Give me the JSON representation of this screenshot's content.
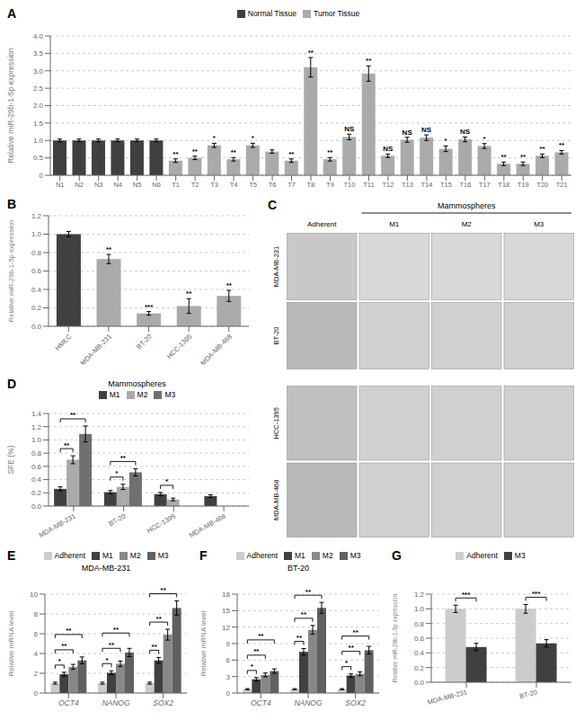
{
  "chart_data": [
    {
      "type": "bar",
      "categories": [
        "N1",
        "N2",
        "N3",
        "N4",
        "N5",
        "N6",
        "T1",
        "T2",
        "T3",
        "T4",
        "T5",
        "T6",
        "T7",
        "T8",
        "T9",
        "T10",
        "T11",
        "T12",
        "T13",
        "T14",
        "T15",
        "T16",
        "T17",
        "T18",
        "T19",
        "T20",
        "T21"
      ],
      "series": [
        {
          "name": "Normal Tissue",
          "color": "#404040",
          "values": [
            1.0,
            1.0,
            1.0,
            1.0,
            1.0,
            1.0,
            null,
            null,
            null,
            null,
            null,
            null,
            null,
            null,
            null,
            null,
            null,
            null,
            null,
            null,
            null,
            null,
            null,
            null,
            null,
            null,
            null
          ],
          "errors": [
            0.04,
            0.04,
            0.04,
            0.04,
            0.04,
            0.04,
            null,
            null,
            null,
            null,
            null,
            null,
            null,
            null,
            null,
            null,
            null,
            null,
            null,
            null,
            null,
            null,
            null,
            null,
            null,
            null,
            null
          ]
        },
        {
          "name": "Tumor Tissue",
          "color": "#aaaaaa",
          "values": [
            null,
            null,
            null,
            null,
            null,
            null,
            0.42,
            0.5,
            0.86,
            0.46,
            0.86,
            0.68,
            0.42,
            3.1,
            0.46,
            1.1,
            2.92,
            0.56,
            1.02,
            1.08,
            0.76,
            1.03,
            0.84,
            0.33,
            0.33,
            0.56,
            0.66
          ],
          "errors": [
            null,
            null,
            null,
            null,
            null,
            null,
            0.05,
            0.05,
            0.06,
            0.05,
            0.06,
            0.05,
            0.05,
            0.28,
            0.05,
            0.08,
            0.22,
            0.05,
            0.07,
            0.08,
            0.08,
            0.07,
            0.07,
            0.05,
            0.05,
            0.05,
            0.05
          ]
        }
      ],
      "ylabel": "Relative miR-29b-1-5p expression",
      "ylim": [
        0,
        4.0
      ],
      "yticks": [
        0,
        0.5,
        {
          "value": 1.0,
          "label": "1.0"
        },
        1.5,
        {
          "value": 2.0,
          "label": "2.0"
        },
        2.5,
        {
          "value": 3.0,
          "label": "3.0"
        },
        3.5,
        {
          "value": 4.0,
          "label": "4.0"
        }
      ],
      "grid": true,
      "legend": "top",
      "annotations": [
        {
          "text": "A"
        },
        {
          "text": "**",
          "category": "T1"
        },
        {
          "text": "**",
          "category": "T2"
        },
        {
          "text": "*",
          "category": "T3"
        },
        {
          "text": "**",
          "category": "T4"
        },
        {
          "text": "*",
          "category": "T5"
        },
        {
          "text": "**",
          "category": "T7"
        },
        {
          "text": "**",
          "category": "T8"
        },
        {
          "text": "**",
          "category": "T9"
        },
        {
          "text": "NS",
          "category": "T10"
        },
        {
          "text": "**",
          "category": "T11"
        },
        {
          "text": "NS",
          "category": "T12"
        },
        {
          "text": "NS",
          "category": "T13"
        },
        {
          "text": "NS",
          "category": "T14"
        },
        {
          "text": "*",
          "category": "T15"
        },
        {
          "text": "NS",
          "category": "T16"
        },
        {
          "text": "*",
          "category": "T17"
        },
        {
          "text": "**",
          "category": "T18"
        },
        {
          "text": "**",
          "category": "T19"
        },
        {
          "text": "**",
          "category": "T20"
        },
        {
          "text": "**",
          "category": "T21"
        }
      ]
    },
    {
      "type": "bar",
      "categories": [
        "HMEC",
        "MDA-MB-231",
        "BT-20",
        "HCC-1395",
        "MDA-MB-468"
      ],
      "values": [
        1.0,
        0.73,
        0.14,
        0.22,
        0.33
      ],
      "errors": [
        0.03,
        0.05,
        0.02,
        0.08,
        0.06
      ],
      "colors": [
        "#404040",
        "#aaaaaa",
        "#aaaaaa",
        "#aaaaaa",
        "#aaaaaa"
      ],
      "ylabel": "Relative miR-29b-1-5p expression",
      "ylim": [
        0,
        1.2
      ],
      "yticks": [
        {
          "value": 0.0,
          "label": "0.0"
        },
        0.2,
        0.4,
        0.6,
        0.8,
        {
          "value": 1.0,
          "label": "1.0"
        },
        1.2
      ],
      "grid": true,
      "annotations": [
        {
          "text": "B"
        },
        {
          "text": "**",
          "category": "MDA-MB-231"
        },
        {
          "text": "***",
          "category": "BT-20"
        },
        {
          "text": "**",
          "category": "HCC-1395"
        },
        {
          "text": "**",
          "category": "MDA-MB-468"
        }
      ]
    },
    {
      "type": "image",
      "categories": [
        "Adherent",
        "M1",
        "M2",
        "M3"
      ],
      "series": [
        {
          "name": "MDA-MB-231",
          "colors": [
            "#c8c8c8",
            "#d8d8d8",
            "#d8d8d8",
            "#d8d8d8"
          ]
        },
        {
          "name": "BT-20",
          "colors": [
            "#b8b8b8",
            "#d0d0d0",
            "#d0d0d0",
            "#d0d0d0"
          ]
        },
        {
          "name": "HCC-1395",
          "colors": [
            "#c0c0c0",
            "#d0d0d0",
            "#d0d0d0",
            "#d0d0d0"
          ]
        },
        {
          "name": "MDA-MB-468",
          "colors": [
            "#b8b8b8",
            "#d0d0d0",
            "#d0d0d0",
            "#d0d0d0"
          ]
        }
      ],
      "annotations": [
        {
          "text": "C"
        },
        {
          "text": "Mammospheres",
          "from": "M1",
          "to": "M3"
        }
      ]
    },
    {
      "type": "bar",
      "title": "Mammospheres",
      "categories": [
        "MDA-MB-231",
        "BT-20",
        "HCC-1395",
        "MDA-MB-468"
      ],
      "series": [
        {
          "name": "M1",
          "color": "#404040",
          "values": [
            0.26,
            0.21,
            0.18,
            0.15
          ],
          "errors": [
            0.03,
            0.025,
            0.025,
            0.02
          ]
        },
        {
          "name": "M2",
          "color": "#aaaaaa",
          "values": [
            0.7,
            0.29,
            0.1,
            0.0
          ],
          "errors": [
            0.06,
            0.04,
            0.02,
            0.0
          ]
        },
        {
          "name": "M3",
          "color": "#707070",
          "values": [
            1.09,
            0.51,
            0.0,
            0.0
          ],
          "errors": [
            0.12,
            0.055,
            0.0,
            0.0
          ]
        }
      ],
      "ylabel": "SFE (%)",
      "ylim": [
        0,
        1.4
      ],
      "yticks": [
        {
          "value": 0.0,
          "label": "0.0"
        },
        0.2,
        0.4,
        0.6,
        0.8,
        {
          "value": 1.0,
          "label": "1.0"
        },
        1.2,
        1.4
      ],
      "grid": true,
      "legend": "top",
      "annotations": [
        {
          "text": "D"
        },
        {
          "text": "**",
          "category": "MDA-MB-231",
          "from": "M1",
          "to": "M2"
        },
        {
          "text": "**",
          "category": "MDA-MB-231",
          "from": "M1",
          "to": "M3"
        },
        {
          "text": "*",
          "category": "BT-20",
          "from": "M1",
          "to": "M2"
        },
        {
          "text": "**",
          "category": "BT-20",
          "from": "M1",
          "to": "M3"
        },
        {
          "text": "*",
          "category": "HCC-1395",
          "from": "M1",
          "to": "M2"
        }
      ]
    },
    {
      "type": "bar",
      "title": "MDA-MB-231",
      "categories": [
        "OCT4",
        "NANOG",
        "SOX2"
      ],
      "series": [
        {
          "name": "Adherent",
          "color": "#cccccc",
          "values": [
            1.0,
            1.0,
            1.0
          ],
          "errors": [
            0.1,
            0.1,
            0.1
          ]
        },
        {
          "name": "M1",
          "color": "#404040",
          "values": [
            1.9,
            2.05,
            3.3
          ],
          "errors": [
            0.2,
            0.2,
            0.3
          ]
        },
        {
          "name": "M2",
          "color": "#888888",
          "values": [
            2.65,
            2.95,
            5.9
          ],
          "errors": [
            0.25,
            0.28,
            0.55
          ]
        },
        {
          "name": "M3",
          "color": "#606060",
          "values": [
            3.3,
            4.1,
            8.6
          ],
          "errors": [
            0.35,
            0.42,
            0.72
          ]
        }
      ],
      "ylabel": "Relative mRNA level",
      "ylim": [
        0,
        10
      ],
      "yticks": [
        0,
        2,
        4,
        6,
        8,
        10
      ],
      "grid": true,
      "legend": "top",
      "annotations": [
        {
          "text": "E"
        },
        {
          "text": "*",
          "category": "OCT4",
          "from": "Adherent",
          "to": "M1"
        },
        {
          "text": "**",
          "category": "OCT4",
          "from": "Adherent",
          "to": "M2"
        },
        {
          "text": "**",
          "category": "OCT4",
          "from": "Adherent",
          "to": "M3"
        },
        {
          "text": "*",
          "category": "NANOG",
          "from": "Adherent",
          "to": "M1"
        },
        {
          "text": "**",
          "category": "NANOG",
          "from": "Adherent",
          "to": "M2"
        },
        {
          "text": "**",
          "category": "NANOG",
          "from": "Adherent",
          "to": "M3"
        },
        {
          "text": "**",
          "category": "SOX2",
          "from": "Adherent",
          "to": "M1"
        },
        {
          "text": "**",
          "category": "SOX2",
          "from": "Adherent",
          "to": "M2"
        },
        {
          "text": "**",
          "category": "SOX2",
          "from": "Adherent",
          "to": "M3"
        }
      ]
    },
    {
      "type": "bar",
      "title": "BT-20",
      "categories": [
        "OCT4",
        "NANOG",
        "SOX2"
      ],
      "series": [
        {
          "name": "Adherent",
          "color": "#cccccc",
          "values": [
            0.7,
            0.7,
            0.7
          ],
          "errors": [
            0.1,
            0.1,
            0.1
          ]
        },
        {
          "name": "M1",
          "color": "#404040",
          "values": [
            2.5,
            7.5,
            3.2
          ],
          "errors": [
            0.3,
            0.6,
            0.3
          ]
        },
        {
          "name": "M2",
          "color": "#888888",
          "values": [
            3.3,
            11.5,
            3.5
          ],
          "errors": [
            0.35,
            0.8,
            0.35
          ]
        },
        {
          "name": "M3",
          "color": "#606060",
          "values": [
            4.0,
            15.5,
            7.8
          ],
          "errors": [
            0.4,
            1.0,
            0.7
          ]
        }
      ],
      "ylabel": "Relative mRNA level",
      "ylim": [
        0,
        18
      ],
      "yticks": [
        0,
        3,
        6,
        9,
        12,
        15,
        18
      ],
      "grid": true,
      "legend": "top",
      "annotations": [
        {
          "text": "F"
        },
        {
          "text": "*",
          "category": "OCT4",
          "from": "Adherent",
          "to": "M1"
        },
        {
          "text": "**",
          "category": "OCT4",
          "from": "Adherent",
          "to": "M2"
        },
        {
          "text": "**",
          "category": "OCT4",
          "from": "Adherent",
          "to": "M3"
        },
        {
          "text": "**",
          "category": "NANOG",
          "from": "Adherent",
          "to": "M1"
        },
        {
          "text": "**",
          "category": "NANOG",
          "from": "Adherent",
          "to": "M2"
        },
        {
          "text": "**",
          "category": "NANOG",
          "from": "Adherent",
          "to": "M3"
        },
        {
          "text": "*",
          "category": "SOX2",
          "from": "Adherent",
          "to": "M1"
        },
        {
          "text": "**",
          "category": "SOX2",
          "from": "Adherent",
          "to": "M2"
        },
        {
          "text": "**",
          "category": "SOX2",
          "from": "Adherent",
          "to": "M3"
        }
      ]
    },
    {
      "type": "bar",
      "categories": [
        "MDA-MB-231",
        "BT-20"
      ],
      "series": [
        {
          "name": "Adherent",
          "color": "#cccccc",
          "values": [
            1.0,
            1.0
          ],
          "errors": [
            0.05,
            0.06
          ]
        },
        {
          "name": "M3",
          "color": "#404040",
          "values": [
            0.48,
            0.53
          ],
          "errors": [
            0.05,
            0.05
          ]
        }
      ],
      "ylabel": "Relative miR-29b-1-5p expression",
      "ylim": [
        0,
        1.2
      ],
      "yticks": [
        {
          "value": 0.0,
          "label": "0.0"
        },
        0.2,
        0.4,
        0.6,
        0.8,
        {
          "value": 1.0,
          "label": "1.0"
        },
        1.2
      ],
      "grid": true,
      "legend": "top",
      "annotations": [
        {
          "text": "G"
        },
        {
          "text": "***",
          "category": "MDA-MB-231",
          "from": "Adherent",
          "to": "M3"
        },
        {
          "text": "***",
          "category": "BT-20",
          "from": "Adherent",
          "to": "M3"
        }
      ]
    }
  ]
}
